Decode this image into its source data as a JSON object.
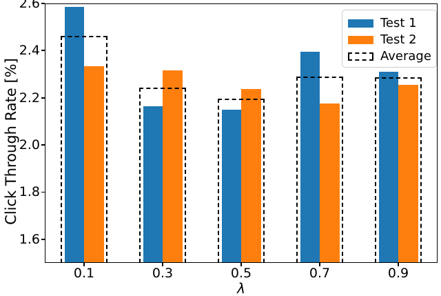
{
  "figure": {
    "background": "#ffffff",
    "text_color": "#000000"
  },
  "chart_data": {
    "type": "bar",
    "title": "",
    "xlabel": "λ",
    "ylabel": "Click Through Rate [%]",
    "categories": [
      0.1,
      0.3,
      0.5,
      0.7,
      0.9
    ],
    "xtick_labels": [
      "0.1",
      "0.3",
      "0.5",
      "0.7",
      "0.9"
    ],
    "series": [
      {
        "name": "Test 1",
        "color": "#1f77b4",
        "values": [
          2.586,
          2.163,
          2.15,
          2.396,
          2.309
        ]
      },
      {
        "name": "Test 2",
        "color": "#ff7f0e",
        "values": [
          2.335,
          2.315,
          2.238,
          2.176,
          2.256
        ]
      }
    ],
    "average": {
      "name": "Average",
      "style": "dashed-outline",
      "color": "#000000",
      "values": [
        2.461,
        2.239,
        2.194,
        2.286,
        2.283
      ]
    },
    "xlim": [
      0.0,
      1.0
    ],
    "ylim": [
      1.5,
      2.6
    ],
    "yticks": [
      1.6,
      1.8,
      2.0,
      2.2,
      2.4,
      2.6
    ],
    "ytick_labels": [
      "1.6",
      "1.8",
      "2.0",
      "2.2",
      "2.4",
      "2.6"
    ],
    "grid": false,
    "legend_position": "upper right",
    "legend": [
      "Test 1",
      "Test 2",
      "Average"
    ]
  }
}
